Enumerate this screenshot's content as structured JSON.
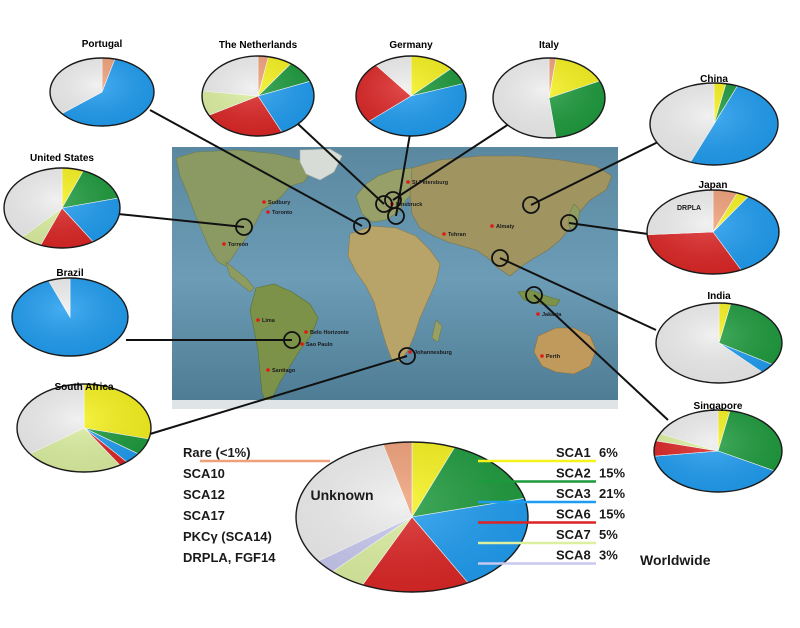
{
  "colors": {
    "SCA1": "#f6f21c",
    "SCA2": "#1c9a3c",
    "SCA3": "#1e9cf0",
    "SCA6": "#dc2424",
    "SCA7": "#dcf0a0",
    "SCA8": "#c8c8f0",
    "Rare": "#f0a078",
    "Unknown": "#eeeeee"
  },
  "countries": [
    {
      "name": "Portugal",
      "slices": [
        [
          "Rare",
          4
        ],
        [
          "SCA3",
          60
        ],
        [
          "Unknown",
          36
        ]
      ]
    },
    {
      "name": "The Netherlands",
      "slices": [
        [
          "Rare",
          3
        ],
        [
          "SCA1",
          7
        ],
        [
          "SCA2",
          9
        ],
        [
          "SCA3",
          24
        ],
        [
          "SCA6",
          24
        ],
        [
          "SCA7",
          10
        ],
        [
          "Unknown",
          23
        ]
      ]
    },
    {
      "name": "Germany",
      "slices": [
        [
          "SCA1",
          13
        ],
        [
          "SCA2",
          7
        ],
        [
          "SCA3",
          44
        ],
        [
          "SCA6",
          25
        ],
        [
          "Unknown",
          11
        ]
      ]
    },
    {
      "name": "Italy",
      "slices": [
        [
          "Rare",
          2
        ],
        [
          "SCA1",
          16
        ],
        [
          "SCA2",
          30
        ],
        [
          "Unknown",
          52
        ]
      ]
    },
    {
      "name": "China",
      "slices": [
        [
          "SCA1",
          3
        ],
        [
          "SCA2",
          3
        ],
        [
          "SCA3",
          50
        ],
        [
          "Unknown",
          44
        ]
      ]
    },
    {
      "name": "United States",
      "slices": [
        [
          "SCA1",
          6
        ],
        [
          "SCA2",
          15
        ],
        [
          "SCA3",
          20
        ],
        [
          "SCA6",
          15
        ],
        [
          "SCA7",
          6
        ],
        [
          "Unknown",
          38
        ]
      ]
    },
    {
      "name": "Japan",
      "slices": [
        [
          "Rare",
          6
        ],
        [
          "SCA1",
          3
        ],
        [
          "SCA3",
          34
        ],
        [
          "SCA6",
          31
        ],
        [
          "Unknown",
          26
        ]
      ],
      "annotation": "DRPLA"
    },
    {
      "name": "Brazil",
      "slices": [
        [
          "SCA3",
          94
        ],
        [
          "Unknown",
          6
        ]
      ]
    },
    {
      "name": "India",
      "slices": [
        [
          "SCA1",
          3
        ],
        [
          "SCA2",
          31
        ],
        [
          "SCA3",
          4
        ],
        [
          "Unknown",
          62
        ]
      ]
    },
    {
      "name": "South Africa",
      "slices": [
        [
          "SCA1",
          29
        ],
        [
          "SCA2",
          6
        ],
        [
          "SCA3",
          4
        ],
        [
          "SCA6",
          2
        ],
        [
          "SCA7",
          24
        ],
        [
          "Unknown",
          35
        ]
      ]
    },
    {
      "name": "Singapore",
      "slices": [
        [
          "SCA1",
          3
        ],
        [
          "SCA2",
          30
        ],
        [
          "SCA3",
          40
        ],
        [
          "SCA6",
          6
        ],
        [
          "SCA7",
          3
        ],
        [
          "Unknown",
          18
        ]
      ]
    }
  ],
  "cities": [
    "St Petersburg",
    "Sudbury",
    "Toronto",
    "Innsbruck",
    "Torreón",
    "Almaty",
    "Tehran",
    "Lima",
    "Belo Horizonte",
    "Sao Paulo",
    "Santiago",
    "Johannesburg",
    "Jakarta",
    "Perth"
  ],
  "worldwide": {
    "title": "Worldwide",
    "unknown_label": "Unknown",
    "slices": [
      [
        "SCA1",
        6
      ],
      [
        "SCA2",
        15
      ],
      [
        "SCA3",
        21
      ],
      [
        "SCA6",
        15
      ],
      [
        "SCA7",
        5
      ],
      [
        "SCA8",
        3
      ],
      [
        "Unknown",
        31
      ],
      [
        "Rare",
        4
      ]
    ]
  },
  "legend_right": [
    {
      "key": "SCA1",
      "name": "SCA1",
      "pct": "6%"
    },
    {
      "key": "SCA2",
      "name": "SCA2",
      "pct": "15%"
    },
    {
      "key": "SCA3",
      "name": "SCA3",
      "pct": "21%"
    },
    {
      "key": "SCA6",
      "name": "SCA6",
      "pct": "15%"
    },
    {
      "key": "SCA7",
      "name": "SCA7",
      "pct": "5%"
    },
    {
      "key": "SCA8",
      "name": "SCA8",
      "pct": "3%"
    }
  ],
  "legend_left": [
    "Rare (<1%)",
    "SCA10",
    "SCA12",
    "SCA17",
    "PKCγ (SCA14)",
    "DRPLA, FGF14"
  ]
}
